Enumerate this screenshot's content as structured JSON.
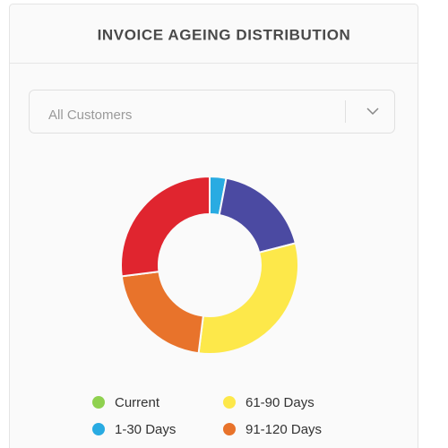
{
  "header": {
    "title": "INVOICE AGEING DISTRIBUTION"
  },
  "filter": {
    "placeholder": "All Customers"
  },
  "chart_data": {
    "type": "pie",
    "donut": true,
    "categories": [
      "Current",
      "1-30 Days",
      null,
      "61-90 Days",
      "91-120 Days",
      null
    ],
    "values": [
      0,
      3,
      18,
      31,
      21,
      27
    ],
    "colors": [
      "#8fd14f",
      "#29abe2",
      "#4b4aa2",
      "#fde84a",
      "#e8732b",
      "#e0252f"
    ]
  }
}
